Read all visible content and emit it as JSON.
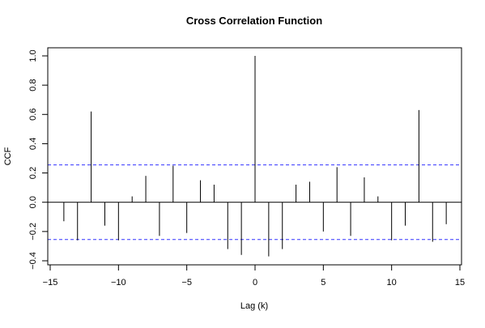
{
  "chart_data": {
    "type": "bar",
    "title": "Cross Correlation Function",
    "xlabel": "Lag (k)",
    "ylabel": "CCF",
    "xlim": [
      -15,
      15
    ],
    "ylim": [
      -0.4,
      1.0
    ],
    "x_ticks": [
      -15,
      -10,
      -5,
      0,
      5,
      10,
      15
    ],
    "x_tick_labels": [
      "−15",
      "−10",
      "−5",
      "0",
      "5",
      "10",
      "15"
    ],
    "y_ticks": [
      -0.4,
      -0.2,
      0.0,
      0.2,
      0.4,
      0.6,
      0.8,
      1.0
    ],
    "y_tick_labels": [
      "−0.4",
      "−0.2",
      "0.0",
      "0.2",
      "0.4",
      "0.6",
      "0.8",
      "1.0"
    ],
    "confidence_band": [
      0.255,
      -0.255
    ],
    "colors": {
      "band": "#3333ff",
      "spike": "#000000"
    },
    "x": [
      -14,
      -13,
      -12,
      -11,
      -10,
      -9,
      -8,
      -7,
      -6,
      -5,
      -4,
      -3,
      -2,
      -1,
      0,
      1,
      2,
      3,
      4,
      5,
      6,
      7,
      8,
      9,
      10,
      11,
      12,
      13,
      14
    ],
    "values": [
      -0.13,
      -0.26,
      0.62,
      -0.16,
      -0.26,
      0.04,
      0.18,
      -0.23,
      0.25,
      -0.21,
      0.15,
      0.12,
      -0.32,
      -0.36,
      1.0,
      -0.37,
      -0.32,
      0.12,
      0.14,
      -0.2,
      0.24,
      -0.23,
      0.17,
      0.04,
      -0.26,
      -0.16,
      0.63,
      -0.27,
      -0.15
    ]
  }
}
